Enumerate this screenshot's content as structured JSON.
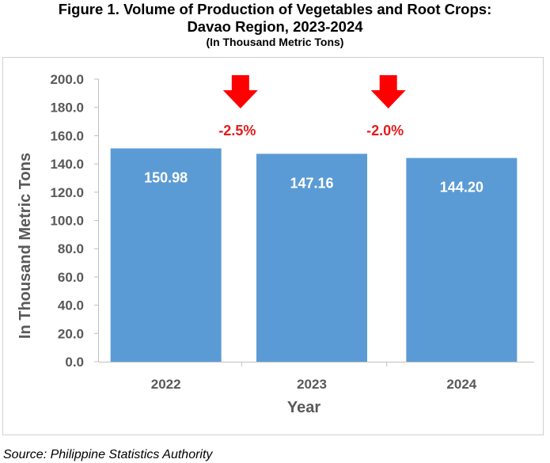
{
  "title_lines": [
    "Figure 1. Volume of Production of Vegetables and Root Crops:",
    "Davao Region, 2023-2024",
    "(In Thousand Metric Tons)"
  ],
  "source": "Source: Philippine Statistics Authority",
  "colors": {
    "bar": "#5B9BD5",
    "arrow": "#FF0000",
    "change_text": "#E31B1B",
    "axis_text": "#595959",
    "gridline": "#d9d9d9"
  },
  "chart_data": {
    "type": "bar",
    "categories": [
      "2022",
      "2023",
      "2024"
    ],
    "values": [
      150.98,
      147.16,
      144.2
    ],
    "data_labels": [
      "150.98",
      "147.16",
      "144.20"
    ],
    "xlabel": "Year",
    "ylabel": "In Thousand Metric Tons",
    "ylim": [
      0,
      200
    ],
    "yticks": [
      "0.0",
      "20.0",
      "40.0",
      "60.0",
      "80.0",
      "100.0",
      "120.0",
      "140.0",
      "160.0",
      "180.0",
      "200.0"
    ],
    "grid": false,
    "annotations": [
      {
        "between": [
          "2022",
          "2023"
        ],
        "text": "-2.5%",
        "icon": "down-arrow-icon"
      },
      {
        "between": [
          "2023",
          "2024"
        ],
        "text": "-2.0%",
        "icon": "down-arrow-icon"
      }
    ]
  }
}
